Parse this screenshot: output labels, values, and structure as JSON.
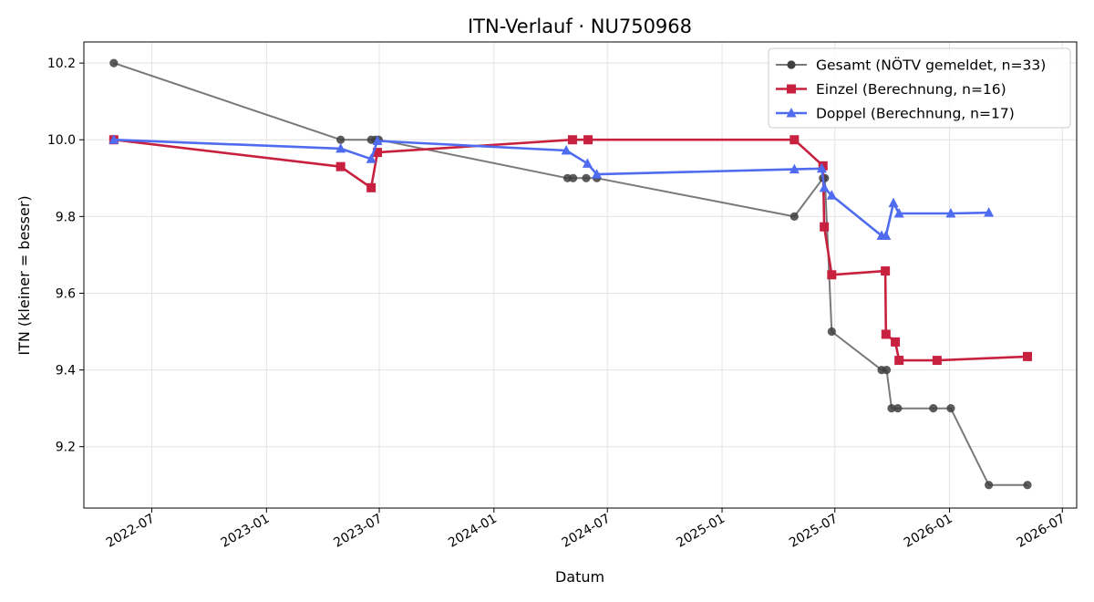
{
  "chart_data": {
    "type": "line",
    "title": "ITN-Verlauf · NU750968",
    "xlabel": "Datum",
    "ylabel": "ITN  (kleiner = besser)",
    "xlim": [
      "2022-03-14",
      "2026-07-24"
    ],
    "ylim": [
      9.04,
      10.255
    ],
    "x_ticks": [
      "2022-07",
      "2023-01",
      "2023-07",
      "2024-01",
      "2024-07",
      "2025-01",
      "2025-07",
      "2026-01",
      "2026-07"
    ],
    "y_ticks": [
      9.2,
      9.4,
      9.6,
      9.8,
      10.0,
      10.2
    ],
    "grid": true,
    "legend_position": "top-right",
    "series": [
      {
        "name": "Gesamt (NÖTV gemeldet, n=33)",
        "color": "#404040",
        "marker": "circle",
        "points": [
          [
            "2022-05-01",
            10.2
          ],
          [
            "2023-04-30",
            10.0
          ],
          [
            "2023-06-18",
            10.0
          ],
          [
            "2023-06-25",
            10.0
          ],
          [
            "2023-06-30",
            10.0
          ],
          [
            "2024-04-28",
            9.9
          ],
          [
            "2024-05-07",
            9.9
          ],
          [
            "2024-05-28",
            9.9
          ],
          [
            "2024-06-14",
            9.9
          ],
          [
            "2025-04-27",
            9.8
          ],
          [
            "2025-06-12",
            9.9
          ],
          [
            "2025-06-15",
            9.9
          ],
          [
            "2025-06-26",
            9.5
          ],
          [
            "2025-09-14",
            9.4
          ],
          [
            "2025-09-22",
            9.4
          ],
          [
            "2025-09-30",
            9.3
          ],
          [
            "2025-10-10",
            9.3
          ],
          [
            "2025-12-06",
            9.3
          ],
          [
            "2026-01-03",
            9.3
          ],
          [
            "2026-03-05",
            9.1
          ],
          [
            "2026-05-06",
            9.1
          ]
        ]
      },
      {
        "name": "Einzel (Berechnung, n=16)",
        "color": "#c8203f",
        "marker": "square",
        "points": [
          [
            "2022-05-01",
            10.0
          ],
          [
            "2023-04-30",
            9.93
          ],
          [
            "2023-06-18",
            9.875
          ],
          [
            "2023-06-28",
            9.967
          ],
          [
            "2024-05-06",
            10.0
          ],
          [
            "2024-05-31",
            10.0
          ],
          [
            "2025-04-27",
            10.0
          ],
          [
            "2025-06-12",
            9.932
          ],
          [
            "2025-06-14",
            9.773
          ],
          [
            "2025-06-26",
            9.648
          ],
          [
            "2025-09-20",
            9.658
          ],
          [
            "2025-09-21",
            9.493
          ],
          [
            "2025-10-06",
            9.473
          ],
          [
            "2025-10-12",
            9.425
          ],
          [
            "2025-12-12",
            9.425
          ],
          [
            "2026-05-06",
            9.435
          ]
        ]
      },
      {
        "name": "Doppel (Berechnung, n=17)",
        "color": "#4f6cf0",
        "marker": "triangle",
        "points": [
          [
            "2022-05-01",
            10.0
          ],
          [
            "2023-04-30",
            9.977
          ],
          [
            "2023-06-18",
            9.95
          ],
          [
            "2023-06-28",
            9.997
          ],
          [
            "2024-04-26",
            9.972
          ],
          [
            "2024-05-30",
            9.938
          ],
          [
            "2024-06-14",
            9.91
          ],
          [
            "2025-04-27",
            9.923
          ],
          [
            "2025-06-10",
            9.925
          ],
          [
            "2025-06-14",
            9.875
          ],
          [
            "2025-06-26",
            9.855
          ],
          [
            "2025-09-14",
            9.75
          ],
          [
            "2025-09-21",
            9.75
          ],
          [
            "2025-10-03",
            9.835
          ],
          [
            "2025-10-12",
            9.808
          ],
          [
            "2026-01-03",
            9.808
          ],
          [
            "2026-03-05",
            9.81
          ]
        ]
      }
    ]
  }
}
